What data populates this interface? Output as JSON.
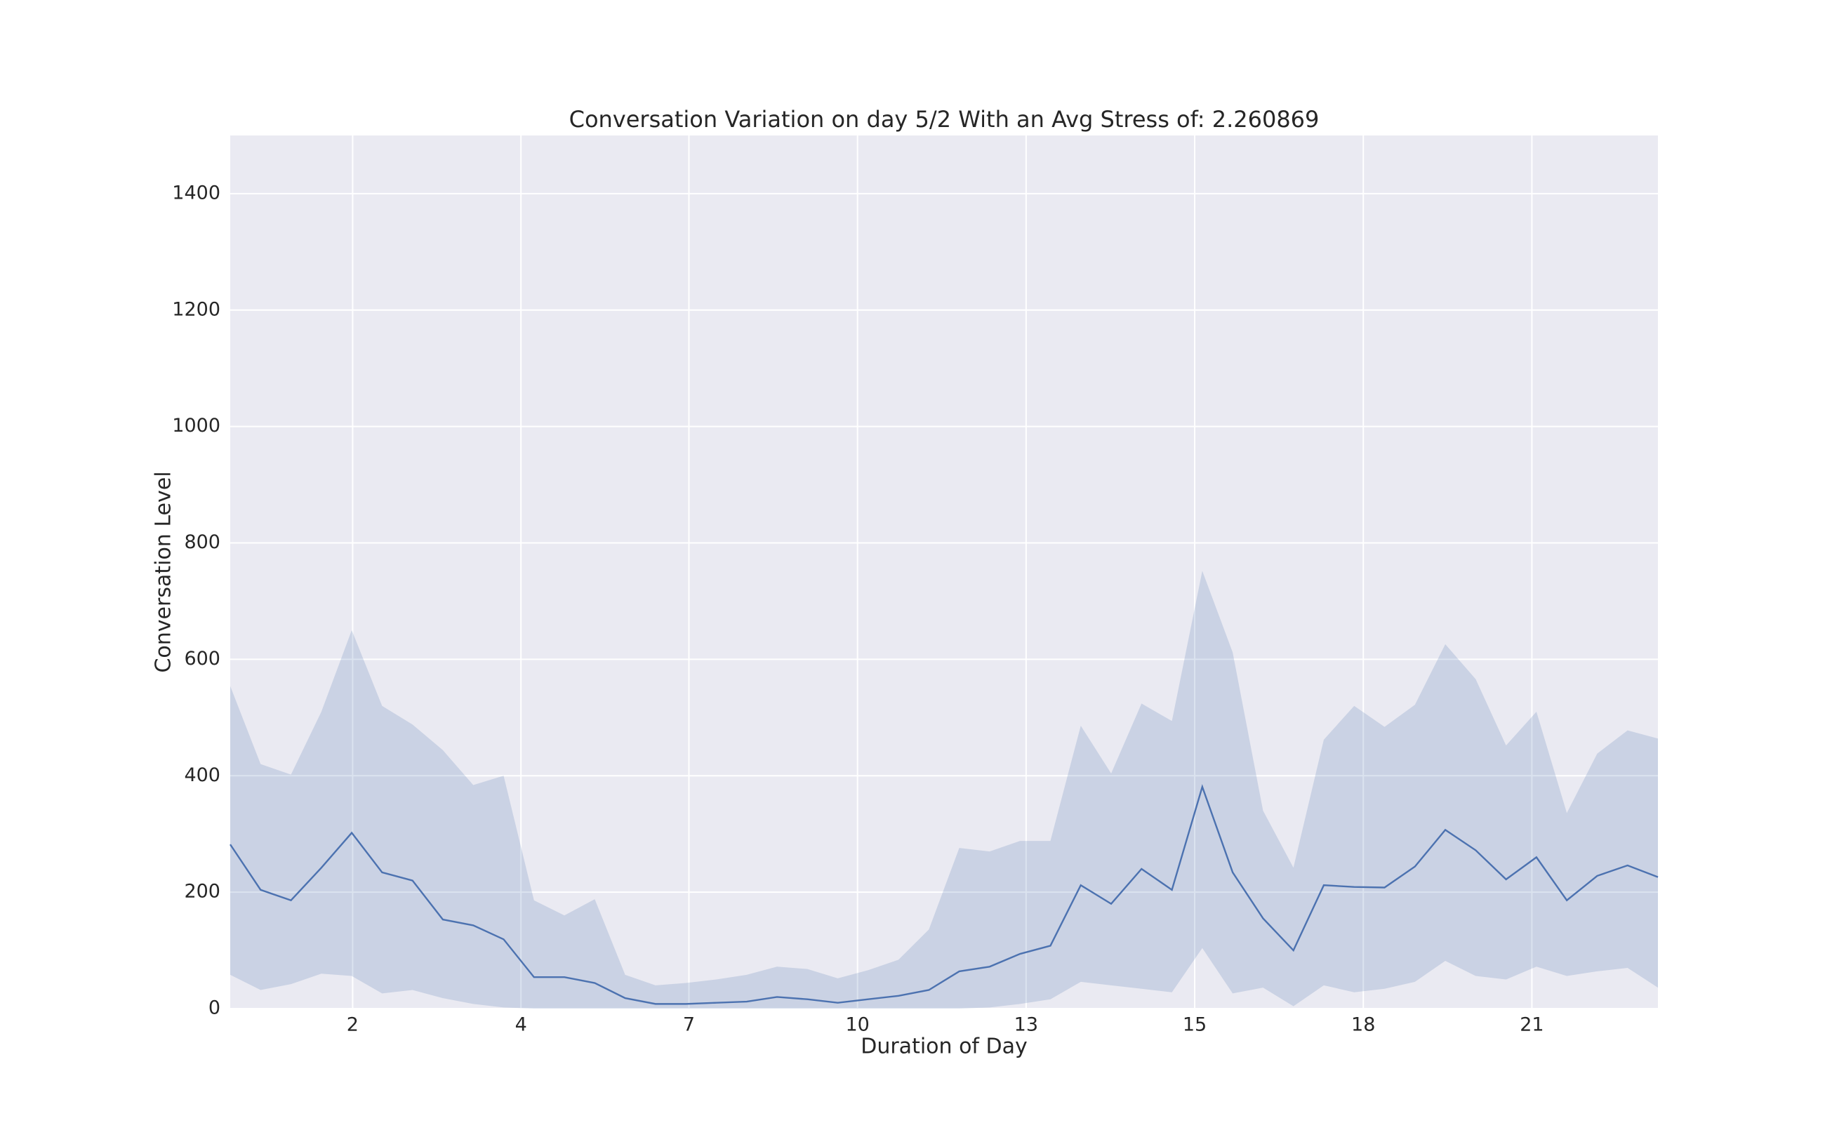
{
  "chart_data": {
    "type": "line",
    "title": "Conversation Variation on day 5/2 With an Avg Stress of: 2.260869",
    "xlabel": "Duration of Day",
    "ylabel": "Conversation Level",
    "x": [
      0,
      1,
      2,
      3,
      4,
      5,
      6,
      7,
      8,
      9,
      10,
      11,
      12,
      13,
      14,
      15,
      16,
      17,
      18,
      19,
      20,
      21,
      22,
      23,
      24,
      25,
      26,
      27,
      28,
      29,
      30,
      31,
      32,
      33,
      34,
      35,
      36,
      37,
      38,
      39,
      40,
      41,
      42,
      43,
      44,
      45,
      46,
      47
    ],
    "series": [
      {
        "color": "#4c72b0",
        "values": [
          282,
          204,
          186,
          242,
          302,
          234,
          220,
          153,
          143,
          119,
          54,
          54,
          44,
          18,
          8,
          8,
          10,
          12,
          20,
          16,
          10,
          16,
          22,
          32,
          64,
          72,
          94,
          108,
          212,
          180,
          240,
          204,
          381,
          234,
          155,
          100,
          212,
          209,
          208,
          244,
          307,
          272,
          222,
          260,
          186,
          228,
          246,
          226
        ],
        "upper": [
          554,
          420,
          402,
          510,
          650,
          520,
          488,
          444,
          384,
          400,
          186,
          160,
          188,
          58,
          40,
          44,
          50,
          58,
          72,
          68,
          52,
          66,
          84,
          136,
          276,
          270,
          288,
          288,
          486,
          404,
          524,
          494,
          752,
          612,
          340,
          242,
          462,
          520,
          484,
          522,
          626,
          566,
          452,
          510,
          336,
          438,
          478,
          464
        ],
        "lower": [
          58,
          32,
          42,
          60,
          56,
          26,
          32,
          18,
          8,
          2,
          0,
          0,
          0,
          0,
          0,
          0,
          0,
          0,
          0,
          0,
          0,
          0,
          0,
          0,
          0,
          2,
          8,
          16,
          46,
          40,
          34,
          28,
          104,
          26,
          36,
          4,
          40,
          28,
          34,
          46,
          82,
          56,
          50,
          72,
          56,
          64,
          70,
          36
        ]
      }
    ],
    "xlim": [
      0,
      47
    ],
    "xticks": [
      {
        "value": 4.03,
        "label": "2"
      },
      {
        "value": 9.57,
        "label": "4"
      },
      {
        "value": 15.1,
        "label": "7"
      },
      {
        "value": 20.65,
        "label": "10"
      },
      {
        "value": 26.2,
        "label": "13"
      },
      {
        "value": 31.75,
        "label": "15"
      },
      {
        "value": 37.3,
        "label": "18"
      },
      {
        "value": 42.85,
        "label": "21"
      }
    ],
    "ylim": [
      0,
      1500
    ],
    "yticks": [
      0,
      200,
      400,
      600,
      800,
      1000,
      1200,
      1400
    ],
    "grid": true,
    "background": "#eaeaf2"
  }
}
